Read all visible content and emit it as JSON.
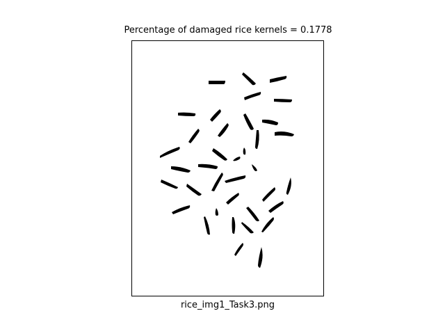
{
  "figure": {
    "title": "Percentage of damaged rice kernels = 0.1778",
    "xlabel": "rice_img1_Task3.png"
  },
  "image": {
    "description_id": "binary-rice-kernel-mask",
    "background_color": "#ffffff",
    "kernel_color": "#000000"
  }
}
